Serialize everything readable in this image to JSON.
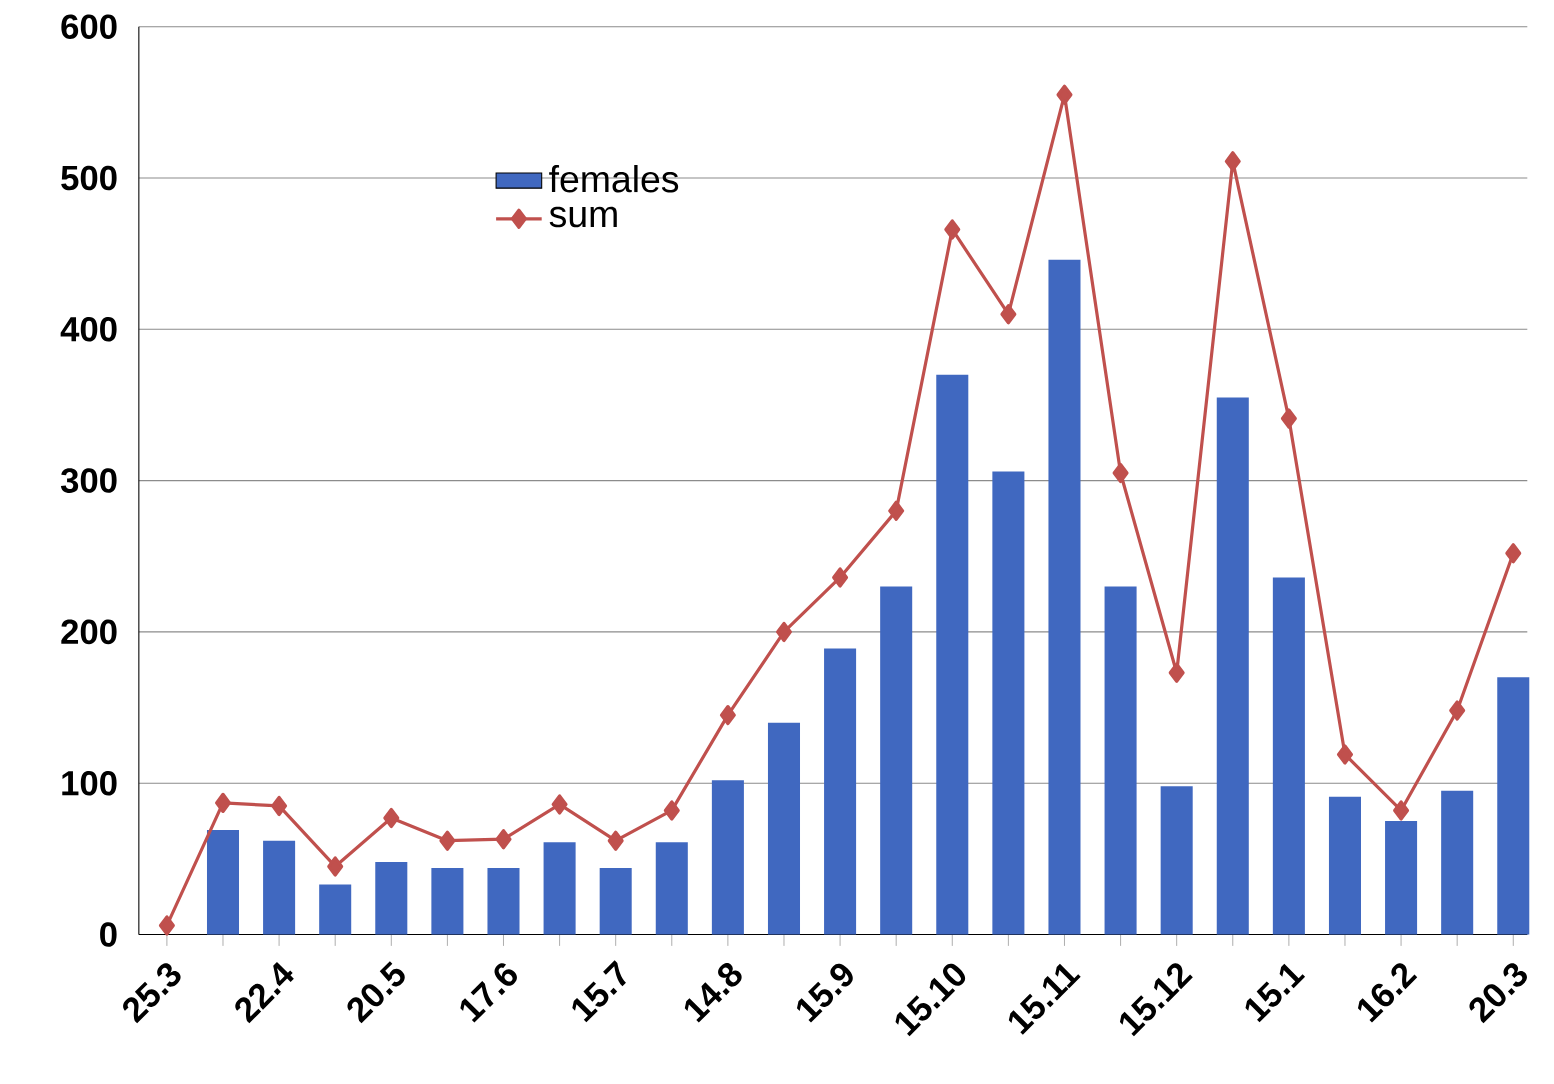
{
  "chart_data": {
    "type": "bar",
    "categories": [
      "25.3",
      null,
      "22.4",
      null,
      "20.5",
      null,
      "17.6",
      null,
      "15.7",
      null,
      "14.8",
      null,
      "15.9",
      null,
      "15.10",
      null,
      "15.11",
      null,
      "15.12",
      null,
      "15.1",
      null,
      "16.2",
      null,
      "20.3"
    ],
    "series": [
      {
        "name": "females",
        "color": "#4068c0",
        "values": [
          0,
          69,
          62,
          33,
          48,
          44,
          44,
          61,
          44,
          61,
          102,
          140,
          189,
          230,
          370,
          306,
          446,
          230,
          98,
          355,
          236,
          91,
          75,
          95,
          170
        ]
      },
      {
        "name": "sum",
        "type": "line",
        "color": "#c0504d",
        "marker": "diamond",
        "values": [
          6,
          87,
          85,
          45,
          77,
          62,
          63,
          86,
          62,
          82,
          145,
          200,
          236,
          280,
          466,
          410,
          555,
          305,
          173,
          511,
          341,
          119,
          82,
          148,
          252
        ]
      }
    ],
    "ylim": [
      0,
      600
    ],
    "yticks": [
      0,
      100,
      200,
      300,
      400,
      500,
      600
    ],
    "grid": "y",
    "legend": "top left"
  }
}
